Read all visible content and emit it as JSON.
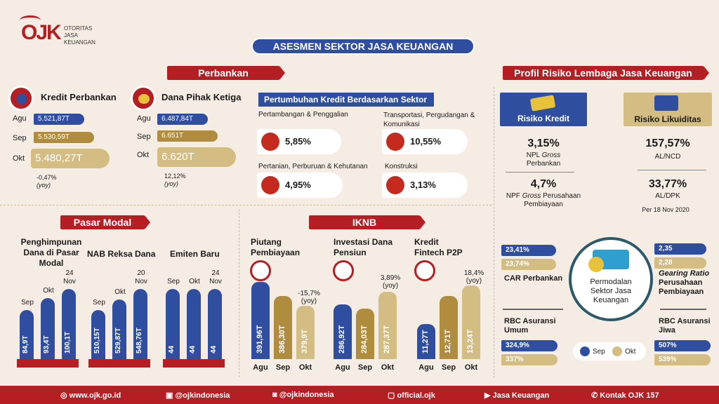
{
  "logo": {
    "mark": "OJK",
    "line1": "OTORITAS",
    "line2": "JASA",
    "line3": "KEUANGAN"
  },
  "title": "ASESMEN SEKTOR JASA KEUANGAN",
  "perbankan": {
    "header": "Perbankan",
    "kredit": {
      "title": "Kredit Perbankan",
      "rows": [
        {
          "m": "Agu",
          "v": "5.521,87T"
        },
        {
          "m": "Sep",
          "v": "5.530,59T"
        },
        {
          "m": "Okt",
          "v": "5.480,27T"
        }
      ],
      "growth": "-0,47%",
      "note": "(yoy)"
    },
    "dpk": {
      "title": "Dana Pihak Ketiga",
      "rows": [
        {
          "m": "Agu",
          "v": "6.487,84T"
        },
        {
          "m": "Sep",
          "v": "6.651T"
        },
        {
          "m": "Okt",
          "v": "6.620T"
        }
      ],
      "growth": "12,12%",
      "note": "(yoy)"
    },
    "sektor": {
      "title": "Pertumbuhan Kredit Berdasarkan Sektor",
      "items": [
        {
          "label": "Pertambangan & Penggalian",
          "value": "5,85%"
        },
        {
          "label": "Transportasi, Pergudangan & Komunikasi",
          "value": "10,55%"
        },
        {
          "label": "Pertanian, Perburuan & Kehutanan",
          "value": "4,95%"
        },
        {
          "label": "Konstruksi",
          "value": "3,13%"
        }
      ]
    }
  },
  "pasar_modal": {
    "header": "Pasar Modal",
    "groups": [
      {
        "title": "Penghimpunan Dana di Pasar Modal",
        "labels": [
          "Sep",
          "Okt",
          "24 Nov"
        ],
        "values": [
          "84,9T",
          "93,4T",
          "100,1T"
        ]
      },
      {
        "title": "NAB Reksa Dana",
        "labels": [
          "Sep",
          "Okt",
          "20 Nov"
        ],
        "values": [
          "510,15T",
          "529,87T",
          "548,76T"
        ]
      },
      {
        "title": "Emiten Baru",
        "labels": [
          "Sep",
          "Okt",
          "24 Nov"
        ],
        "values": [
          "44",
          "44",
          "44"
        ]
      }
    ]
  },
  "iknb": {
    "header": "IKNB",
    "groups": [
      {
        "title": "Piutang Pembiayaan",
        "values": [
          "391,96T",
          "386,30T",
          "379,9T"
        ],
        "growth": "-15,7%",
        "note": "(yoy)"
      },
      {
        "title": "Investasi Dana Pensiun",
        "values": [
          "286,92T",
          "284,03T",
          "287,37T"
        ],
        "growth": "3,89%",
        "note": "(yoy)"
      },
      {
        "title": "Kredit Fintech P2P",
        "values": [
          "11,27T",
          "12,71T",
          "13,24T"
        ],
        "growth": "18,4%",
        "note": "(yoy)"
      }
    ],
    "months": [
      "Agu",
      "Sep",
      "Okt"
    ]
  },
  "profil": {
    "header": "Profil Risiko Lembaga Jasa Keuangan",
    "kredit": {
      "title": "Risiko Kredit",
      "v1": "3,15%",
      "l1a": "NPL",
      "l1b": "Gross",
      "l1c": "Perbankan",
      "v2": "4,7%",
      "l2a": "NPF",
      "l2b": "Gross",
      "l2c": "Perusahaan Pembiayaan"
    },
    "likuiditas": {
      "title": "Risiko Likuiditas",
      "v1": "157,57%",
      "l1": "AL/NCD",
      "v2": "33,77%",
      "l2": "AL/DPK",
      "note": "Per 18 Nov 2020"
    },
    "permodalan": {
      "center": "Permodalan Sektor Jasa Keuangan",
      "car": {
        "sep": "23,41%",
        "okt": "23,74%",
        "label": "CAR Perbankan"
      },
      "gearing": {
        "sep": "2,35",
        "okt": "2,28",
        "label1": "Gearing Ratio",
        "label2": "Perusahaan Pembiayaan"
      },
      "rbc_umum": {
        "label": "RBC Asuransi Umum",
        "sep": "324,9%",
        "okt": "337%"
      },
      "rbc_jiwa": {
        "label": "RBC Asuransi Jiwa",
        "sep": "507%",
        "okt": "539%"
      },
      "legend": {
        "sep": "Sep",
        "okt": "Okt"
      }
    }
  },
  "footer": {
    "web": "www.ojk.go.id",
    "twitter": "@ojkindonesia",
    "ig": "@ojkindonesia",
    "fb": "official.ojk",
    "yt": "Jasa Keuangan",
    "call": "Kontak OJK 157"
  },
  "colors": {
    "red": "#b51f24",
    "blue": "#2f4ea0",
    "gold": "#b08d3e",
    "light_gold": "#d4bd82"
  }
}
